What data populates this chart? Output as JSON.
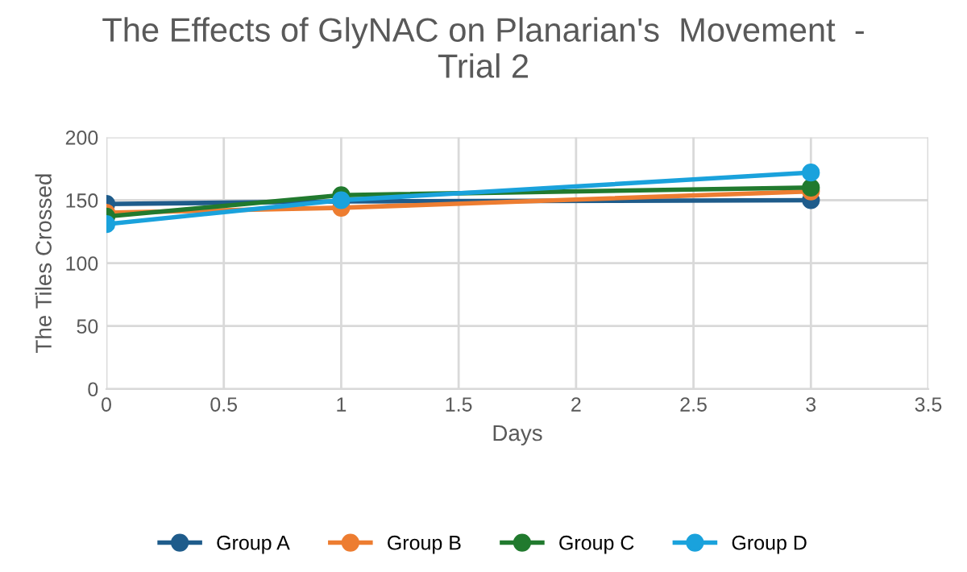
{
  "chart_data": {
    "type": "line",
    "title": "The Effects of GlyNAC on Planarian's  Movement  -\nTrial 2",
    "xlabel": "Days",
    "ylabel": "The Tiles Crossed",
    "x": [
      0,
      1,
      3
    ],
    "series": [
      {
        "name": "Group A",
        "color": "#1f5c8b",
        "values": [
          147,
          149,
          150
        ]
      },
      {
        "name": "Group B",
        "color": "#ed7d31",
        "values": [
          140,
          144,
          157
        ]
      },
      {
        "name": "Group C",
        "color": "#217a2e",
        "values": [
          137,
          154,
          160
        ]
      },
      {
        "name": "Group D",
        "color": "#1aa2dc",
        "values": [
          131,
          150,
          172
        ]
      }
    ],
    "xlim": [
      0,
      3.5
    ],
    "xticks": [
      0,
      0.5,
      1,
      1.5,
      2,
      2.5,
      3,
      3.5
    ],
    "ylim": [
      0,
      200
    ],
    "yticks": [
      0,
      50,
      100,
      150,
      200
    ],
    "grid": true,
    "legend": "bottom",
    "marker": "circle",
    "line_style": "solid"
  }
}
